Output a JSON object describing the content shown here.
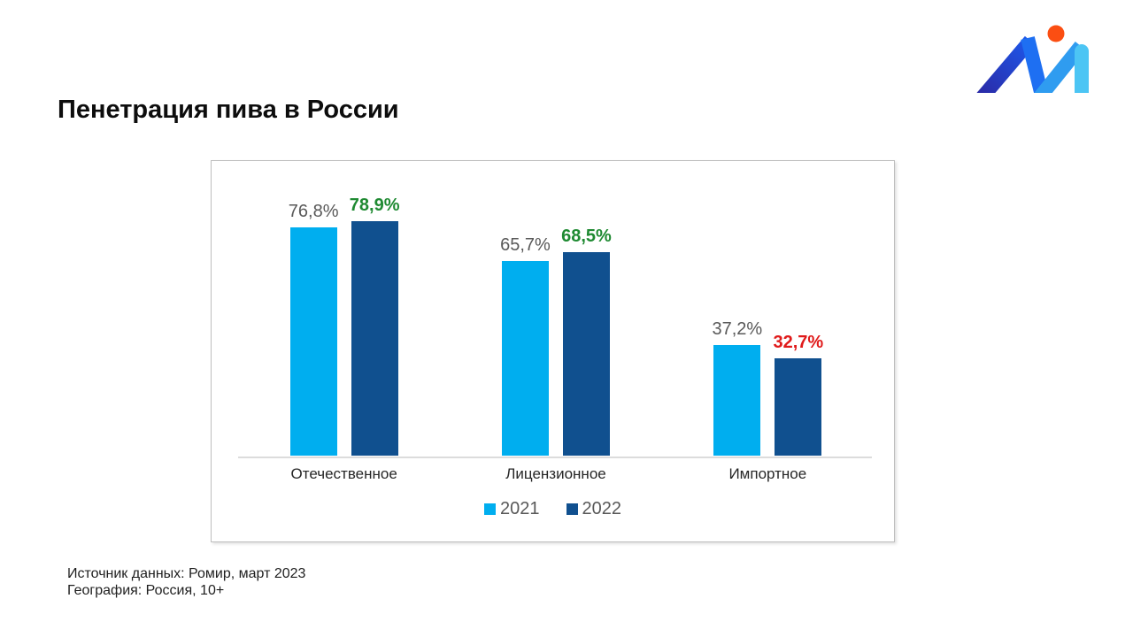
{
  "page": {
    "title": "Пенетрация пива в России"
  },
  "logo": {
    "name": "m-logo",
    "dot_color": "#FB4E12",
    "stroke_dark_start": "#2A2BA8",
    "stroke_dark_end": "#1E56E8",
    "stroke_mid": "#1E6FF2",
    "stroke_mid2": "#2F9CF0",
    "stroke_light": "#4CC5F4"
  },
  "chart_data": {
    "type": "bar",
    "title": "Пенетрация пива в России",
    "categories": [
      "Отечественное",
      "Лицензионное",
      "Импортное"
    ],
    "series": [
      {
        "name": "2021",
        "color": "#00AEEF",
        "values": [
          76.8,
          65.7,
          37.2
        ],
        "labels": [
          "76,8%",
          "65,7%",
          "37,2%"
        ],
        "label_colors": [
          "#595959",
          "#595959",
          "#595959"
        ],
        "label_bold": false
      },
      {
        "name": "2022",
        "color": "#10508F",
        "values": [
          78.9,
          68.5,
          32.7
        ],
        "labels": [
          "78,9%",
          "68,5%",
          "32,7%"
        ],
        "label_colors": [
          "#1F8A32",
          "#1F8A32",
          "#E01A1A"
        ],
        "label_bold": true
      }
    ],
    "unit": "%",
    "ylim": [
      0,
      99
    ],
    "grid": false,
    "legend_position": "bottom",
    "axis_line_color": "#DCDCDC"
  },
  "footer": {
    "source": "Источник данных: Ромир, март 2023",
    "geography": "География: Россия, 10+"
  }
}
